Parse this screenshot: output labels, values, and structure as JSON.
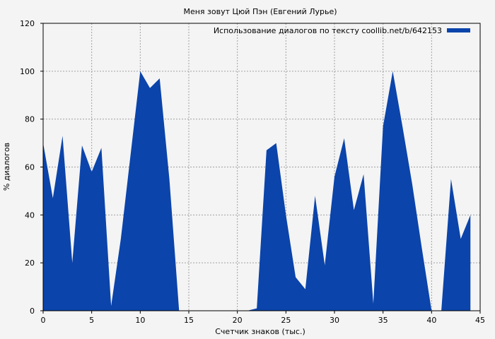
{
  "chart_data": {
    "type": "area",
    "title": "Меня зовут Цюй Пэн (Евгений Лурье)",
    "xlabel": "Счетчик знаков (тыс.)",
    "ylabel": "% диалогов",
    "xlim": [
      0,
      45
    ],
    "ylim": [
      0,
      120
    ],
    "xticks": [
      0,
      5,
      10,
      15,
      20,
      25,
      30,
      35,
      40,
      45
    ],
    "yticks": [
      0,
      20,
      40,
      60,
      80,
      100,
      120
    ],
    "grid": true,
    "legend_position": "top-right",
    "colors": {
      "series": "#0b44aa",
      "background": "#f4f4f4",
      "grid": "#a0a0a0"
    },
    "series": [
      {
        "name": "Использование диалогов по тексту coollib.net/b/642153",
        "x": [
          0,
          1,
          2,
          3,
          4,
          5,
          6,
          7,
          8,
          9,
          10,
          11,
          12,
          13,
          14,
          15,
          16,
          17,
          18,
          19,
          20,
          21,
          22,
          23,
          24,
          25,
          26,
          27,
          28,
          29,
          30,
          31,
          32,
          33,
          34,
          35,
          36,
          37,
          38,
          39,
          40,
          41,
          42,
          43,
          44
        ],
        "y": [
          70,
          47,
          73,
          20,
          69,
          58,
          68,
          2,
          30,
          65,
          100,
          93,
          97,
          55,
          0,
          0,
          0,
          0,
          0,
          0,
          0,
          0,
          1,
          67,
          70,
          40,
          14,
          9,
          48,
          19,
          56,
          72,
          42,
          57,
          3,
          77,
          100,
          77,
          53,
          26,
          0,
          0,
          55,
          30,
          40
        ]
      }
    ]
  }
}
